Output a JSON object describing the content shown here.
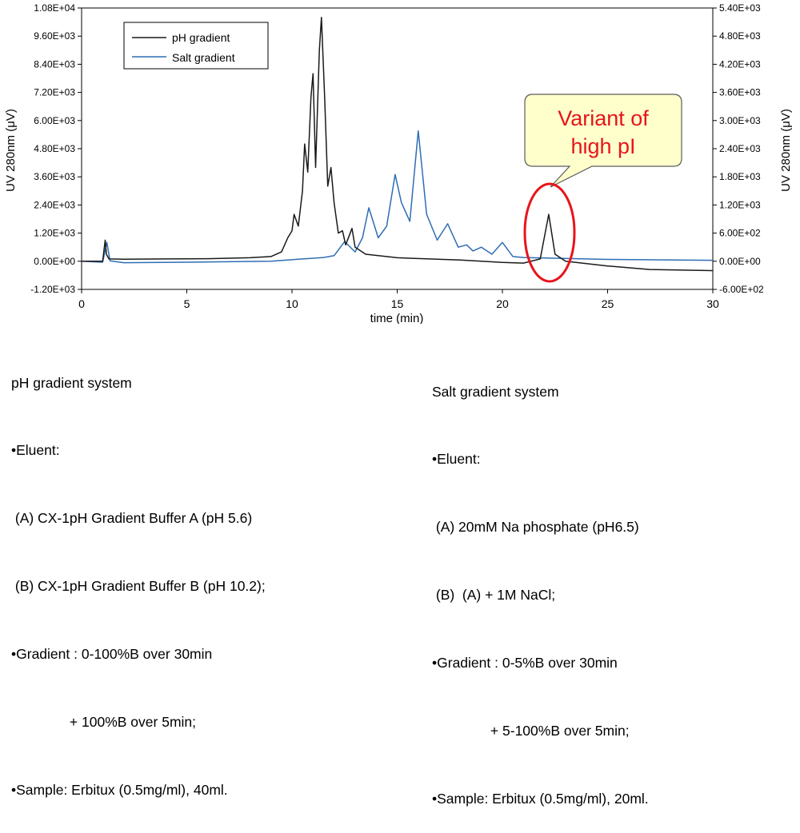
{
  "chart_data": {
    "type": "line",
    "xlabel": "time (min)",
    "ylabel_left": "UV 280nm (μV)",
    "ylabel_right": "UV 280nm (μV)",
    "xlim": [
      0,
      30
    ],
    "xticks": [
      0,
      5,
      10,
      15,
      20,
      25,
      30
    ],
    "ylim_left": [
      -1200,
      10800
    ],
    "yticks_left": [
      "-1.20E+03",
      "0.00E+00",
      "1.20E+03",
      "2.40E+03",
      "3.60E+03",
      "4.80E+03",
      "6.00E+03",
      "7.20E+03",
      "8.40E+03",
      "9.60E+03",
      "1.08E+04"
    ],
    "ylim_right": [
      -600,
      5400
    ],
    "yticks_right": [
      "-6.00E+02",
      "0.00E+00",
      "6.00E+02",
      "1.20E+03",
      "1.80E+03",
      "2.40E+03",
      "3.00E+03",
      "3.60E+03",
      "4.20E+03",
      "4.80E+03",
      "5.40E+03"
    ],
    "grid": false,
    "legend_position": "top-left",
    "series": [
      {
        "name": "pH gradient",
        "axis": "left",
        "color": "#1a1a1a",
        "points": [
          [
            0,
            0
          ],
          [
            1.0,
            0
          ],
          [
            1.12,
            900
          ],
          [
            1.18,
            300
          ],
          [
            1.3,
            100
          ],
          [
            2,
            90
          ],
          [
            4,
            100
          ],
          [
            6,
            110
          ],
          [
            8,
            150
          ],
          [
            9,
            200
          ],
          [
            9.5,
            400
          ],
          [
            9.8,
            1000
          ],
          [
            10.0,
            1300
          ],
          [
            10.1,
            2000
          ],
          [
            10.3,
            1500
          ],
          [
            10.5,
            3000
          ],
          [
            10.6,
            5000
          ],
          [
            10.75,
            3800
          ],
          [
            10.9,
            7000
          ],
          [
            11.0,
            8000
          ],
          [
            11.12,
            4000
          ],
          [
            11.3,
            9000
          ],
          [
            11.4,
            10400
          ],
          [
            11.55,
            7000
          ],
          [
            11.7,
            3200
          ],
          [
            11.85,
            4000
          ],
          [
            12.0,
            2500
          ],
          [
            12.2,
            1200
          ],
          [
            12.4,
            1300
          ],
          [
            12.55,
            700
          ],
          [
            12.85,
            1400
          ],
          [
            13.0,
            600
          ],
          [
            13.5,
            300
          ],
          [
            15,
            150
          ],
          [
            18,
            50
          ],
          [
            20,
            -50
          ],
          [
            21,
            -80
          ],
          [
            21.8,
            100
          ],
          [
            22.2,
            2000
          ],
          [
            22.5,
            300
          ],
          [
            23,
            0
          ],
          [
            25,
            -200
          ],
          [
            27,
            -350
          ],
          [
            30,
            -400
          ]
        ]
      },
      {
        "name": "Salt gradient",
        "axis": "right",
        "color": "#2f6db3",
        "points": [
          [
            0,
            0
          ],
          [
            1.0,
            -20
          ],
          [
            1.2,
            400
          ],
          [
            1.35,
            10
          ],
          [
            2,
            -30
          ],
          [
            5,
            -20
          ],
          [
            9,
            0
          ],
          [
            10.5,
            50
          ],
          [
            11.5,
            80
          ],
          [
            12.0,
            120
          ],
          [
            12.5,
            420
          ],
          [
            13.0,
            200
          ],
          [
            13.35,
            500
          ],
          [
            13.65,
            1140
          ],
          [
            14.1,
            500
          ],
          [
            14.5,
            750
          ],
          [
            14.9,
            1850
          ],
          [
            15.2,
            1250
          ],
          [
            15.6,
            850
          ],
          [
            16.0,
            2780
          ],
          [
            16.4,
            1000
          ],
          [
            16.9,
            450
          ],
          [
            17.4,
            800
          ],
          [
            17.9,
            300
          ],
          [
            18.3,
            350
          ],
          [
            18.6,
            220
          ],
          [
            19.0,
            300
          ],
          [
            19.5,
            150
          ],
          [
            20.0,
            400
          ],
          [
            20.5,
            100
          ],
          [
            21,
            80
          ],
          [
            25,
            40
          ],
          [
            30,
            20
          ]
        ]
      }
    ],
    "annotations": [
      {
        "text_line1": "Variant of",
        "text_line2": "high pI",
        "x": 22.2
      }
    ]
  },
  "notes": {
    "ph": {
      "title": "pH gradient system",
      "lines": [
        "•Eluent:",
        " (A) CX-1pH Gradient Buffer A (pH 5.6)",
        " (B) CX-1pH Gradient Buffer B (pH 10.2);",
        "•Gradient : 0-100%B over 30min",
        "               + 100%B over 5min;",
        "•Sample: Erbitux (0.5mg/ml), 40ml."
      ]
    },
    "salt": {
      "title": "Salt gradient system",
      "lines": [
        "•Eluent:",
        " (A) 20mM Na phosphate (pH6.5)",
        " (B)  (A) + 1M NaCl;",
        "•Gradient : 0-5%B over 30min",
        "               + 5-100%B over 5min;",
        "•Sample: Erbitux (0.5mg/ml), 20ml."
      ]
    }
  }
}
